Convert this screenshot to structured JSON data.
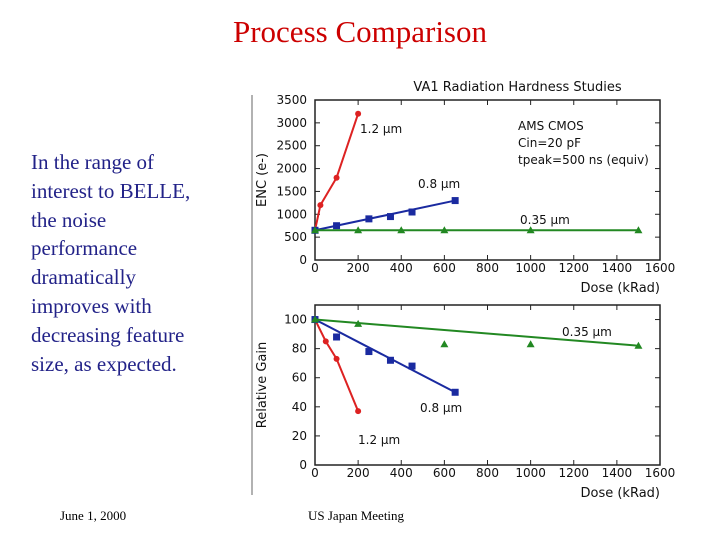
{
  "slide": {
    "title": "Process Comparison",
    "body_lines": [
      "In the range of",
      "interest to BELLE,",
      "the noise",
      "performance",
      "dramatically",
      "improves with",
      "decreasing feature",
      "size, as expected."
    ],
    "footer_date": "June 1, 2000",
    "footer_meeting": "US Japan Meeting"
  },
  "chart_data": [
    {
      "type": "line",
      "title": "VA1 Radiation Hardness Studies",
      "xlabel": "Dose (kRad)",
      "ylabel": "ENC (e-)",
      "xlim": [
        0,
        1600
      ],
      "ylim": [
        0,
        3500
      ],
      "xticks": [
        0,
        200,
        400,
        600,
        800,
        1000,
        1200,
        1400,
        1600
      ],
      "yticks": [
        0,
        500,
        1000,
        1500,
        2000,
        2500,
        3000,
        3500
      ],
      "annotation": [
        "AMS CMOS",
        "Cin=20 pF",
        "tpeak=500 ns (equiv)"
      ],
      "series": [
        {
          "name": "1.2 μm",
          "color": "#dd2222",
          "marker": "circle",
          "x": [
            0,
            25,
            100,
            200
          ],
          "y": [
            650,
            1200,
            1800,
            3200
          ]
        },
        {
          "name": "0.8 μm",
          "color": "#1a2aa0",
          "marker": "square",
          "x": [
            0,
            100,
            250,
            350,
            450,
            650
          ],
          "y": [
            650,
            750,
            900,
            950,
            1050,
            1300
          ]
        },
        {
          "name": "0.35 μm",
          "color": "#228822",
          "marker": "triangle",
          "x": [
            0,
            200,
            400,
            600,
            1000,
            1500
          ],
          "y": [
            650,
            650,
            650,
            650,
            650,
            650
          ]
        }
      ]
    },
    {
      "type": "line",
      "title": "",
      "xlabel": "Dose (kRad)",
      "ylabel": "Relative Gain",
      "xlim": [
        0,
        1600
      ],
      "ylim": [
        0,
        110
      ],
      "xticks": [
        0,
        200,
        400,
        600,
        800,
        1000,
        1200,
        1400,
        1600
      ],
      "yticks": [
        0,
        20,
        40,
        60,
        80,
        100
      ],
      "series": [
        {
          "name": "1.2 μm",
          "color": "#dd2222",
          "marker": "circle",
          "x": [
            0,
            50,
            100,
            200
          ],
          "y": [
            100,
            85,
            73,
            37
          ]
        },
        {
          "name": "0.8 μm",
          "color": "#1a2aa0",
          "marker": "square",
          "x": [
            0,
            100,
            250,
            350,
            450,
            650
          ],
          "y": [
            100,
            88,
            78,
            72,
            68,
            50
          ]
        },
        {
          "name": "0.35 μm",
          "color": "#228822",
          "marker": "triangle",
          "x": [
            0,
            200,
            600,
            1000,
            1500
          ],
          "y": [
            100,
            97,
            83,
            83,
            82
          ]
        }
      ]
    }
  ]
}
